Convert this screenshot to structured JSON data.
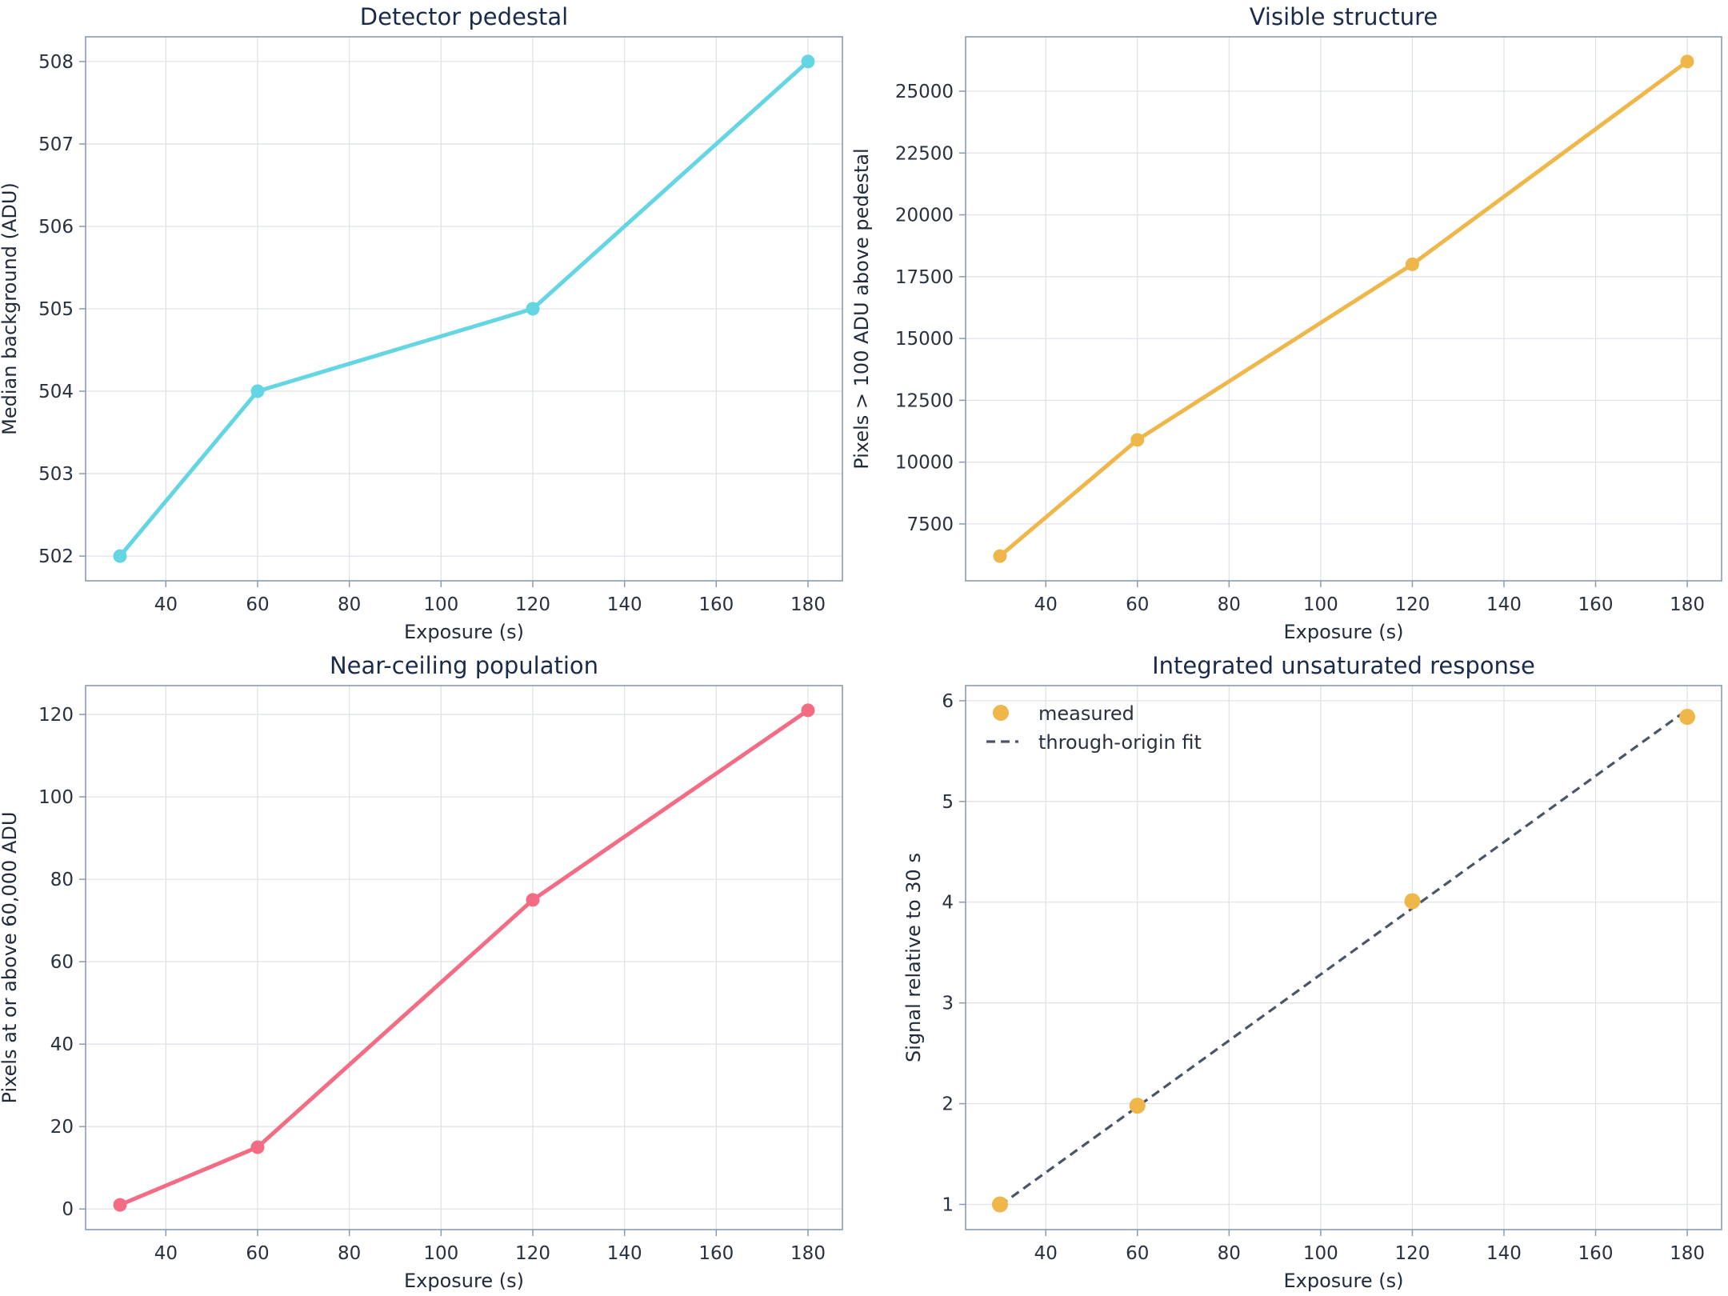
{
  "chart_data": [
    {
      "type": "line",
      "title": "Detector pedestal",
      "xlabel": "Exposure (s)",
      "ylabel": "Median background (ADU)",
      "x": [
        30,
        60,
        120,
        180
      ],
      "series": [
        {
          "values": [
            502,
            504,
            505,
            508
          ],
          "color": "#63d5e3",
          "marker": "circle"
        }
      ],
      "xlim": [
        22.5,
        187.5
      ],
      "ylim": [
        501.7,
        508.3
      ],
      "xticks": [
        40,
        60,
        80,
        100,
        120,
        140,
        160,
        180
      ],
      "yticks": [
        502,
        503,
        504,
        505,
        506,
        507,
        508
      ],
      "grid": true
    },
    {
      "type": "line",
      "title": "Visible structure",
      "xlabel": "Exposure (s)",
      "ylabel": "Pixels > 100 ADU above pedestal",
      "x": [
        30,
        60,
        120,
        180
      ],
      "series": [
        {
          "values": [
            6200,
            10900,
            18000,
            26200
          ],
          "color": "#efb64a",
          "marker": "circle"
        }
      ],
      "xlim": [
        22.5,
        187.5
      ],
      "ylim": [
        5200,
        27200
      ],
      "xticks": [
        40,
        60,
        80,
        100,
        120,
        140,
        160,
        180
      ],
      "yticks": [
        7500,
        10000,
        12500,
        15000,
        17500,
        20000,
        22500,
        25000
      ],
      "grid": true
    },
    {
      "type": "line",
      "title": "Near-ceiling population",
      "xlabel": "Exposure (s)",
      "ylabel": "Pixels at or above 60,000 ADU",
      "x": [
        30,
        60,
        120,
        180
      ],
      "series": [
        {
          "values": [
            1,
            15,
            75,
            121
          ],
          "color": "#f36c84",
          "marker": "circle"
        }
      ],
      "xlim": [
        22.5,
        187.5
      ],
      "ylim": [
        -5,
        127
      ],
      "xticks": [
        40,
        60,
        80,
        100,
        120,
        140,
        160,
        180
      ],
      "yticks": [
        0,
        20,
        40,
        60,
        80,
        100,
        120
      ],
      "grid": true
    },
    {
      "type": "scatter",
      "title": "Integrated unsaturated response",
      "xlabel": "Exposure (s)",
      "ylabel": "Signal relative to 30 s",
      "x": [
        30,
        60,
        120,
        180
      ],
      "series": [
        {
          "name": "measured",
          "values": [
            1.0,
            1.98,
            4.01,
            5.84
          ],
          "color": "#efb64a",
          "marker": "circle"
        },
        {
          "name": "through-origin fit",
          "values": [
            0.99,
            1.97,
            3.94,
            5.91
          ],
          "color": "#4a5568",
          "style": "dashed"
        }
      ],
      "xlim": [
        22.5,
        187.5
      ],
      "ylim": [
        0.75,
        6.15
      ],
      "xticks": [
        40,
        60,
        80,
        100,
        120,
        140,
        160,
        180
      ],
      "yticks": [
        1,
        2,
        3,
        4,
        5,
        6
      ],
      "legend": "top-left",
      "grid": true
    }
  ]
}
